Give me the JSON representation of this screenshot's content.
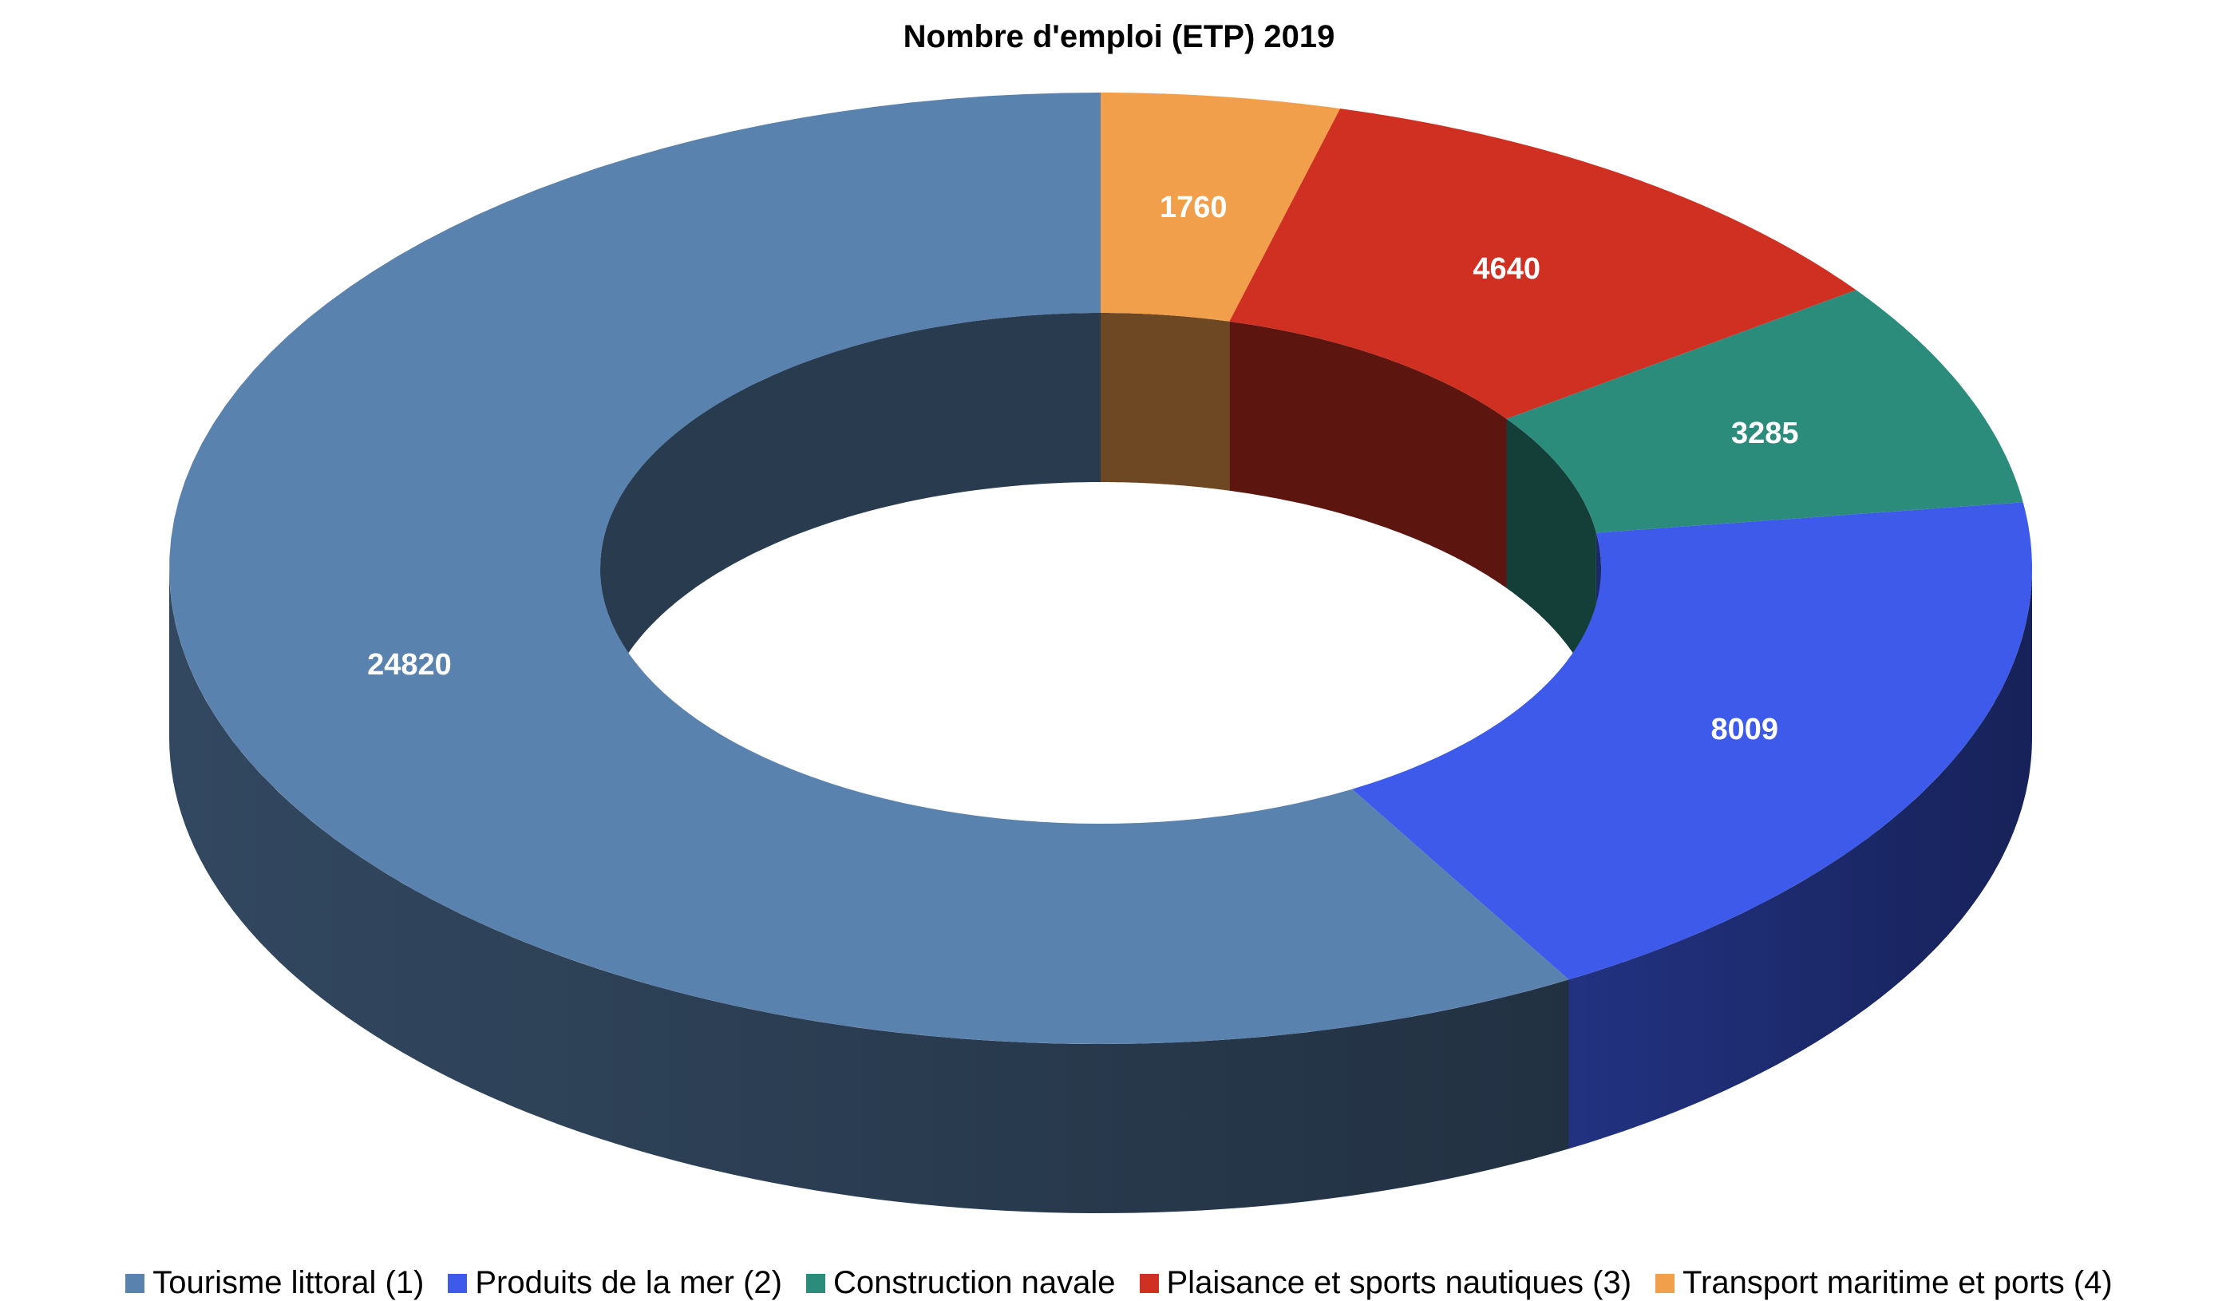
{
  "chart_data": {
    "type": "pie",
    "variant": "doughnut-3d",
    "title": "Nombre d'emploi (ETP) 2019",
    "categories": [
      "Tourisme littoral (1)",
      "Produits de la mer (2)",
      "Construction navale",
      "Plaisance et sports nautiques (3)",
      "Transport maritime et ports (4)"
    ],
    "values": [
      24820,
      8009,
      3285,
      4640,
      1760
    ],
    "colors": [
      "#5A82AE",
      "#3D5AEA",
      "#2B8C7C",
      "#CF3022",
      "#F29F4C"
    ],
    "legend_position": "bottom",
    "data_labels": true
  }
}
